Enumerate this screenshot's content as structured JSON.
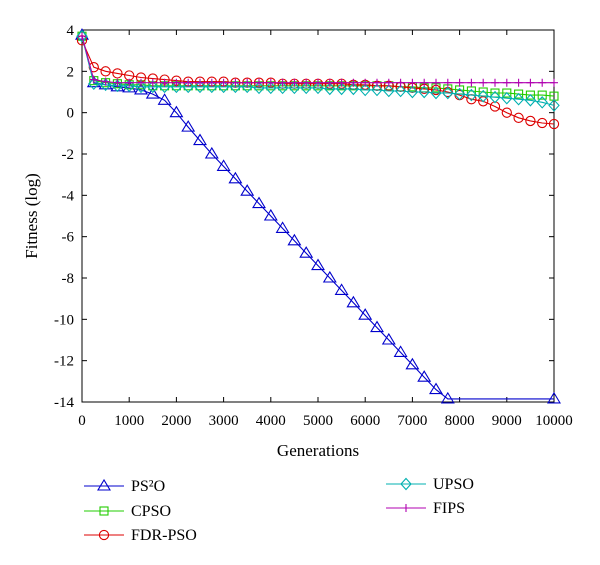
{
  "chart_data": {
    "type": "line",
    "xlabel": "Generations",
    "ylabel": "Fitness (log)",
    "xlim": [
      0,
      10000
    ],
    "ylim": [
      -14,
      4
    ],
    "xticks": [
      0,
      1000,
      2000,
      3000,
      4000,
      5000,
      6000,
      7000,
      8000,
      9000,
      10000
    ],
    "yticks": [
      4,
      2,
      0,
      -2,
      -4,
      -6,
      -8,
      -10,
      -12,
      -14
    ],
    "grid": false,
    "legend_position": "below-plot",
    "x": [
      0,
      250,
      500,
      750,
      1000,
      1250,
      1500,
      1750,
      2000,
      2250,
      2500,
      2750,
      3000,
      3250,
      3500,
      3750,
      4000,
      4250,
      4500,
      4750,
      5000,
      5250,
      5500,
      5750,
      6000,
      6250,
      6500,
      6750,
      7000,
      7250,
      7500,
      7750,
      8000,
      8250,
      8500,
      8750,
      9000,
      9250,
      9500,
      9750,
      10000
    ],
    "series": [
      {
        "name": "PS²O",
        "color": "#0000cc",
        "marker": "triangle",
        "values": [
          3.75,
          1.45,
          1.35,
          1.25,
          1.2,
          1.1,
          0.9,
          0.6,
          0.0,
          -0.7,
          -1.35,
          -2.0,
          -2.6,
          -3.2,
          -3.8,
          -4.4,
          -5.0,
          -5.6,
          -6.2,
          -6.8,
          -7.4,
          -8.0,
          -8.6,
          -9.2,
          -9.8,
          -10.4,
          -11.0,
          -11.6,
          -12.2,
          -12.8,
          -13.4,
          -13.85,
          -13.85,
          -13.85,
          -13.85,
          -13.85,
          -13.85,
          -13.85,
          -13.85,
          -13.85,
          -13.85
        ]
      },
      {
        "name": "CPSO",
        "color": "#22cc00",
        "marker": "square",
        "values": [
          3.7,
          1.55,
          1.45,
          1.4,
          1.35,
          1.35,
          1.3,
          1.3,
          1.3,
          1.3,
          1.3,
          1.3,
          1.3,
          1.3,
          1.3,
          1.3,
          1.3,
          1.3,
          1.3,
          1.3,
          1.3,
          1.3,
          1.3,
          1.3,
          1.3,
          1.3,
          1.3,
          1.25,
          1.25,
          1.2,
          1.2,
          1.15,
          1.1,
          1.05,
          1.0,
          0.95,
          0.95,
          0.9,
          0.85,
          0.85,
          0.8
        ]
      },
      {
        "name": "FDR-PSO",
        "color": "#dd0000",
        "marker": "circle",
        "values": [
          3.5,
          2.2,
          2.0,
          1.9,
          1.8,
          1.7,
          1.65,
          1.6,
          1.55,
          1.5,
          1.5,
          1.5,
          1.5,
          1.45,
          1.45,
          1.45,
          1.45,
          1.4,
          1.4,
          1.4,
          1.4,
          1.4,
          1.4,
          1.35,
          1.35,
          1.3,
          1.3,
          1.25,
          1.2,
          1.15,
          1.1,
          1.0,
          0.85,
          0.65,
          0.55,
          0.3,
          0.0,
          -0.25,
          -0.4,
          -0.5,
          -0.55
        ]
      },
      {
        "name": "UPSO",
        "color": "#00b0b0",
        "marker": "diamond",
        "values": [
          3.7,
          1.4,
          1.35,
          1.3,
          1.3,
          1.25,
          1.25,
          1.25,
          1.25,
          1.25,
          1.25,
          1.25,
          1.25,
          1.25,
          1.25,
          1.2,
          1.2,
          1.2,
          1.2,
          1.2,
          1.2,
          1.15,
          1.15,
          1.15,
          1.1,
          1.1,
          1.05,
          1.05,
          1.0,
          1.0,
          0.95,
          0.95,
          0.9,
          0.85,
          0.8,
          0.75,
          0.7,
          0.65,
          0.6,
          0.5,
          0.35
        ]
      },
      {
        "name": "FIPS",
        "color": "#b000b0",
        "marker": "plus",
        "values": [
          3.7,
          1.6,
          1.5,
          1.45,
          1.45,
          1.45,
          1.45,
          1.45,
          1.45,
          1.45,
          1.45,
          1.45,
          1.45,
          1.45,
          1.45,
          1.45,
          1.45,
          1.45,
          1.45,
          1.45,
          1.45,
          1.45,
          1.45,
          1.45,
          1.45,
          1.45,
          1.45,
          1.45,
          1.45,
          1.45,
          1.45,
          1.45,
          1.45,
          1.45,
          1.45,
          1.45,
          1.45,
          1.45,
          1.45,
          1.45,
          1.45
        ]
      }
    ]
  }
}
